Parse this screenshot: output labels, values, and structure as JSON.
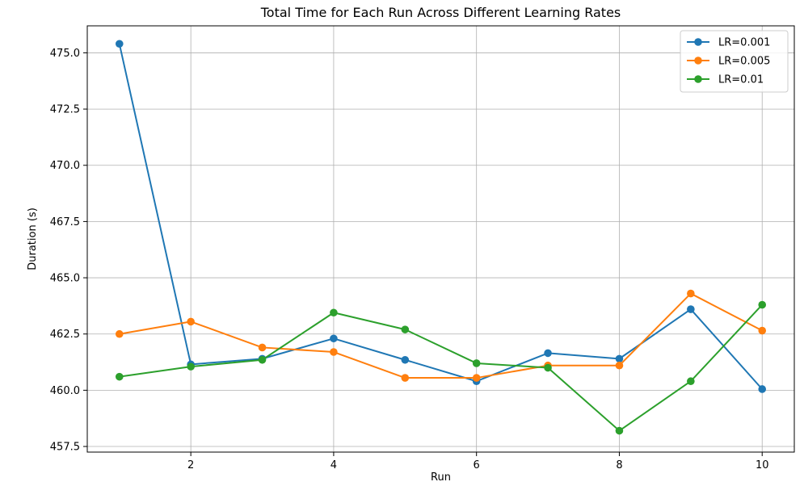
{
  "chart_data": {
    "type": "line",
    "title": "Total Time for Each Run Across Different Learning Rates",
    "xlabel": "Run",
    "ylabel": "Duration (s)",
    "x": [
      1,
      2,
      3,
      4,
      5,
      6,
      7,
      8,
      9,
      10
    ],
    "xlim": [
      0.55,
      10.45
    ],
    "ylim": [
      457.25,
      476.2
    ],
    "xticks": [
      2,
      4,
      6,
      8,
      10
    ],
    "xtick_labels": [
      "2",
      "4",
      "6",
      "8",
      "10"
    ],
    "yticks": [
      457.5,
      460.0,
      462.5,
      465.0,
      467.5,
      470.0,
      472.5,
      475.0
    ],
    "ytick_labels": [
      "457.5",
      "460.0",
      "462.5",
      "465.0",
      "467.5",
      "470.0",
      "472.5",
      "475.0"
    ],
    "grid": true,
    "legend_position": "top-right",
    "series": [
      {
        "name": "LR=0.001",
        "color": "#1f77b4",
        "values": [
          475.4,
          461.15,
          461.4,
          462.3,
          461.35,
          460.4,
          461.65,
          461.4,
          463.6,
          460.05
        ]
      },
      {
        "name": "LR=0.005",
        "color": "#ff7f0e",
        "values": [
          462.5,
          463.05,
          461.9,
          461.7,
          460.55,
          460.55,
          461.1,
          461.1,
          464.3,
          462.65
        ]
      },
      {
        "name": "LR=0.01",
        "color": "#2ca02c",
        "values": [
          460.6,
          461.05,
          461.35,
          463.45,
          462.7,
          461.2,
          461.0,
          458.2,
          460.4,
          463.8
        ]
      }
    ]
  }
}
